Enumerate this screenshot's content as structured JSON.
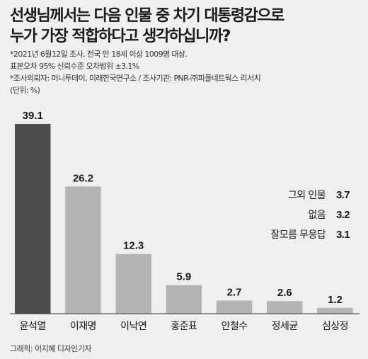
{
  "title_line1": "선생님께서는 다음 인물 중 차기 대통령감으로",
  "title_line2": "누가 가장 적합하다고 생각하십니까?",
  "notes": [
    "*2021년 6월12일 조사, 전국 만 18세 이상 1009명 대상.",
    "표본오차 95% 신뢰수준 오차범위 ±3.1%",
    "*조사의뢰자: 머니투데이, 미래한국연구소 / 조사기관: PNR-㈜피플네트웍스 리서치",
    "(단위: %)"
  ],
  "others": [
    {
      "label": "그외 인물",
      "value": "3.7"
    },
    {
      "label": "없음",
      "value": "3.2"
    },
    {
      "label": "잘모름 무응답",
      "value": "3.1"
    }
  ],
  "credit": "그래픽: 이지혜 디자인기자",
  "chart_data": {
    "type": "bar",
    "title": "선생님께서는 다음 인물 중 차기 대통령감으로 누가 가장 적합하다고 생각하십니까?",
    "unit": "%",
    "categories": [
      "윤석열",
      "이재명",
      "이낙연",
      "홍준표",
      "안철수",
      "정세균",
      "심상정"
    ],
    "values": [
      39.1,
      26.2,
      12.3,
      5.9,
      2.7,
      2.6,
      1.2
    ],
    "value_labels": [
      "39.1",
      "26.2",
      "12.3",
      "5.9",
      "2.7",
      "2.6",
      "1.2"
    ],
    "highlight_color": "#4d4d4d",
    "bar_color": "#b4b4b4",
    "ylim": [
      0,
      39.1
    ],
    "grid": false,
    "legend": "none"
  }
}
